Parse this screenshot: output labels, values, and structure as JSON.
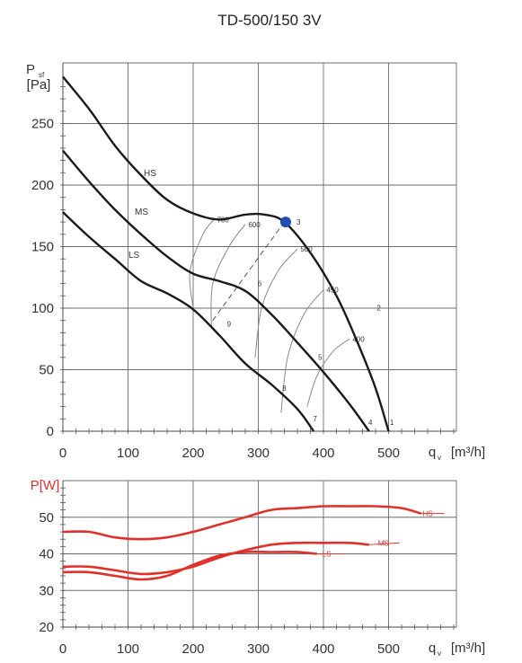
{
  "chart_data": [
    {
      "type": "line",
      "title": "TD-500/150 3V",
      "ylabel": "Psf",
      "ylabel_sub": "sf",
      "ylabel_main": "P",
      "yunit": "[Pa]",
      "xlabel": "q",
      "xlabel_sub": "v",
      "xunit": "[m³/h]",
      "xlim": [
        0,
        560
      ],
      "ylim": [
        0,
        290
      ],
      "x_ticks": [
        0,
        100,
        200,
        300,
        400,
        500
      ],
      "y_ticks": [
        0,
        50,
        100,
        150,
        200,
        250
      ],
      "grid": true,
      "series": [
        {
          "name": "HS",
          "x": [
            0,
            40,
            80,
            120,
            160,
            200,
            240,
            280,
            310,
            340,
            380,
            420,
            450,
            480,
            500
          ],
          "y": [
            288,
            262,
            232,
            208,
            188,
            177,
            172,
            176,
            176,
            170,
            145,
            110,
            75,
            35,
            0
          ]
        },
        {
          "name": "MS",
          "x": [
            0,
            40,
            80,
            120,
            160,
            200,
            240,
            280,
            320,
            360,
            400,
            440,
            470
          ],
          "y": [
            228,
            203,
            180,
            160,
            142,
            128,
            122,
            114,
            95,
            72,
            48,
            22,
            0
          ]
        },
        {
          "name": "LS",
          "x": [
            0,
            40,
            80,
            120,
            160,
            200,
            240,
            280,
            320,
            360,
            385
          ],
          "y": [
            178,
            158,
            140,
            122,
            112,
            99,
            78,
            55,
            38,
            18,
            0
          ]
        }
      ],
      "iso_speed_lines": [
        {
          "label": "700",
          "points": [
            [
              200,
              100
            ],
            [
              195,
              130
            ],
            [
              215,
              160
            ],
            [
              232,
              172
            ]
          ]
        },
        {
          "label": "600",
          "points": [
            [
              228,
              85
            ],
            [
              230,
              120
            ],
            [
              255,
              150
            ],
            [
              280,
              168
            ]
          ]
        },
        {
          "label": "500",
          "points": [
            [
              295,
              60
            ],
            [
              305,
              100
            ],
            [
              330,
              130
            ],
            [
              360,
              148
            ]
          ]
        },
        {
          "label": "450",
          "points": [
            [
              335,
              15
            ],
            [
              345,
              60
            ],
            [
              370,
              95
            ],
            [
              400,
              115
            ]
          ]
        },
        {
          "label": "400",
          "points": [
            [
              375,
              20
            ],
            [
              390,
              45
            ],
            [
              415,
              65
            ],
            [
              440,
              75
            ]
          ]
        }
      ],
      "system_line": {
        "points": [
          [
            230,
            90
          ],
          [
            340,
            170
          ]
        ]
      },
      "operating_point": {
        "label": "3",
        "x": 342,
        "y": 170,
        "color": "#1f4fb5"
      },
      "point_labels": [
        {
          "label": "1",
          "x": 505,
          "y": 5
        },
        {
          "label": "2",
          "x": 485,
          "y": 98
        },
        {
          "label": "4",
          "x": 472,
          "y": 5
        },
        {
          "label": "5",
          "x": 395,
          "y": 58
        },
        {
          "label": "6",
          "x": 302,
          "y": 118
        },
        {
          "label": "7",
          "x": 387,
          "y": 8
        },
        {
          "label": "8",
          "x": 340,
          "y": 33
        },
        {
          "label": "9",
          "x": 255,
          "y": 85
        }
      ]
    },
    {
      "type": "line",
      "ylabel": "P[W]",
      "xlabel": "q",
      "xlabel_sub": "v",
      "xunit": "[m³/h]",
      "xlim": [
        0,
        560
      ],
      "ylim": [
        20,
        59
      ],
      "x_ticks": [
        0,
        100,
        200,
        300,
        400,
        500
      ],
      "y_ticks": [
        20,
        30,
        40,
        50
      ],
      "grid": true,
      "color": "#e0302a",
      "series": [
        {
          "name": "HS",
          "x": [
            0,
            40,
            80,
            120,
            160,
            200,
            240,
            280,
            320,
            360,
            400,
            440,
            480,
            520,
            550
          ],
          "y": [
            46,
            46,
            44.5,
            44,
            44.5,
            46,
            48,
            50,
            52,
            52.5,
            53,
            53,
            53,
            52.5,
            51
          ]
        },
        {
          "name": "MS",
          "x": [
            0,
            40,
            80,
            120,
            160,
            200,
            240,
            280,
            320,
            360,
            400,
            440,
            470
          ],
          "y": [
            36.5,
            36.5,
            35.5,
            34.5,
            35,
            36.5,
            39,
            41,
            42.5,
            43,
            43,
            43,
            42.5
          ]
        },
        {
          "name": "LS",
          "x": [
            0,
            40,
            80,
            120,
            160,
            200,
            240,
            280,
            320,
            360,
            390
          ],
          "y": [
            35,
            35,
            34,
            33,
            34,
            37,
            39.5,
            40.5,
            40.5,
            40.5,
            40
          ]
        }
      ]
    }
  ]
}
